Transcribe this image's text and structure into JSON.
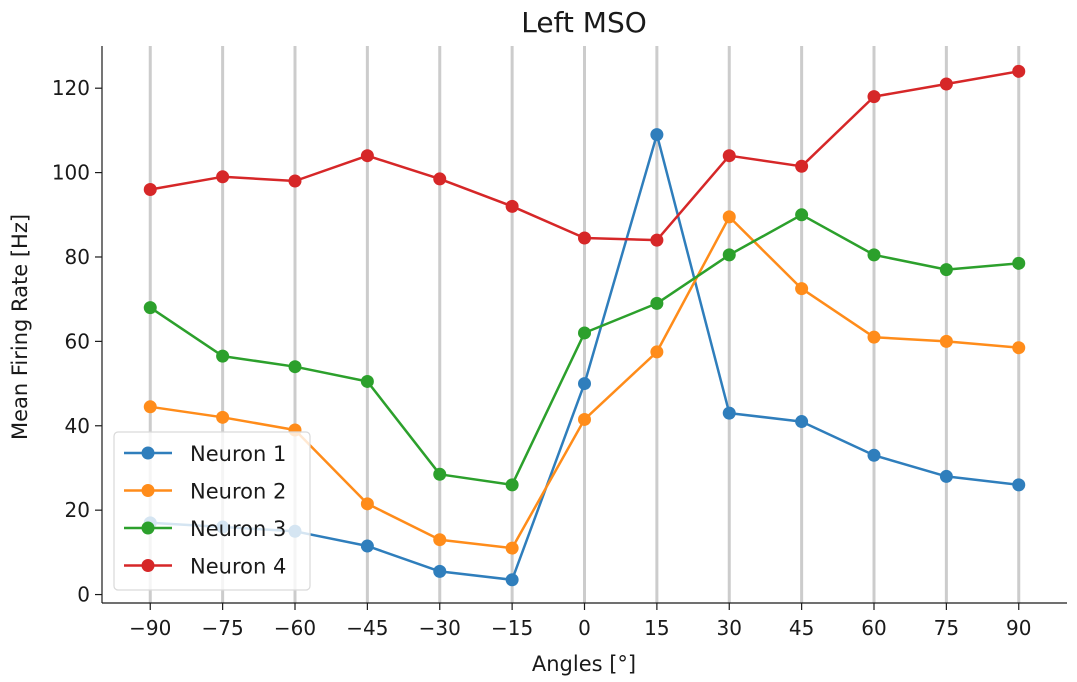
{
  "chart_data": {
    "type": "line",
    "title": "Left MSO",
    "xlabel": "Angles [°]",
    "ylabel": "Mean Firing Rate [Hz]",
    "x": [
      -90,
      -75,
      -60,
      -45,
      -30,
      -15,
      0,
      15,
      30,
      45,
      60,
      75,
      90
    ],
    "x_tick_labels": [
      "−90",
      "−75",
      "−60",
      "−45",
      "−30",
      "−15",
      "0",
      "15",
      "30",
      "45",
      "60",
      "75",
      "90"
    ],
    "xlim": [
      -100,
      100
    ],
    "ylim": [
      -2,
      130
    ],
    "y_ticks": [
      0,
      20,
      40,
      60,
      80,
      100,
      120
    ],
    "vertical_gridlines": true,
    "horizontal_gridlines": false,
    "legend_position": "lower-left",
    "series": [
      {
        "name": "Neuron 1",
        "color": "#2f7ebc",
        "values": [
          17,
          16,
          15,
          11.5,
          5.5,
          3.5,
          50,
          109,
          43,
          41,
          33,
          28,
          26
        ]
      },
      {
        "name": "Neuron 2",
        "color": "#ff8c1a",
        "values": [
          44.5,
          42,
          39,
          21.5,
          13,
          11,
          41.5,
          57.5,
          89.5,
          72.5,
          61,
          60,
          58.5
        ]
      },
      {
        "name": "Neuron 3",
        "color": "#2ca02c",
        "values": [
          68,
          56.5,
          54,
          50.5,
          28.5,
          26,
          62,
          69,
          80.5,
          90,
          80.5,
          77,
          78.5
        ]
      },
      {
        "name": "Neuron 4",
        "color": "#d62728",
        "values": [
          96,
          99,
          98,
          104,
          98.5,
          92,
          84.5,
          84,
          104,
          101.5,
          118,
          121,
          124
        ]
      }
    ]
  }
}
